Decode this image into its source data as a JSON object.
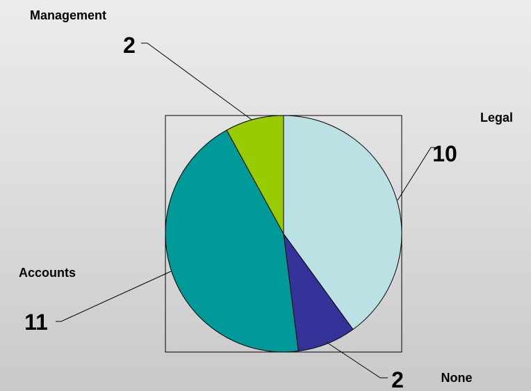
{
  "chart_data": {
    "type": "pie",
    "title": "",
    "slices": [
      {
        "label": "Legal",
        "value": 10,
        "color": "#bce1e4"
      },
      {
        "label": "None",
        "value": 2,
        "color": "#333399"
      },
      {
        "label": "Accounts",
        "value": 11,
        "color": "#009999"
      },
      {
        "label": "Management",
        "value": 2,
        "color": "#99cc00"
      }
    ],
    "start_angle_deg": 0,
    "direction": "clockwise",
    "plot_area_border": true,
    "legend": "none"
  }
}
